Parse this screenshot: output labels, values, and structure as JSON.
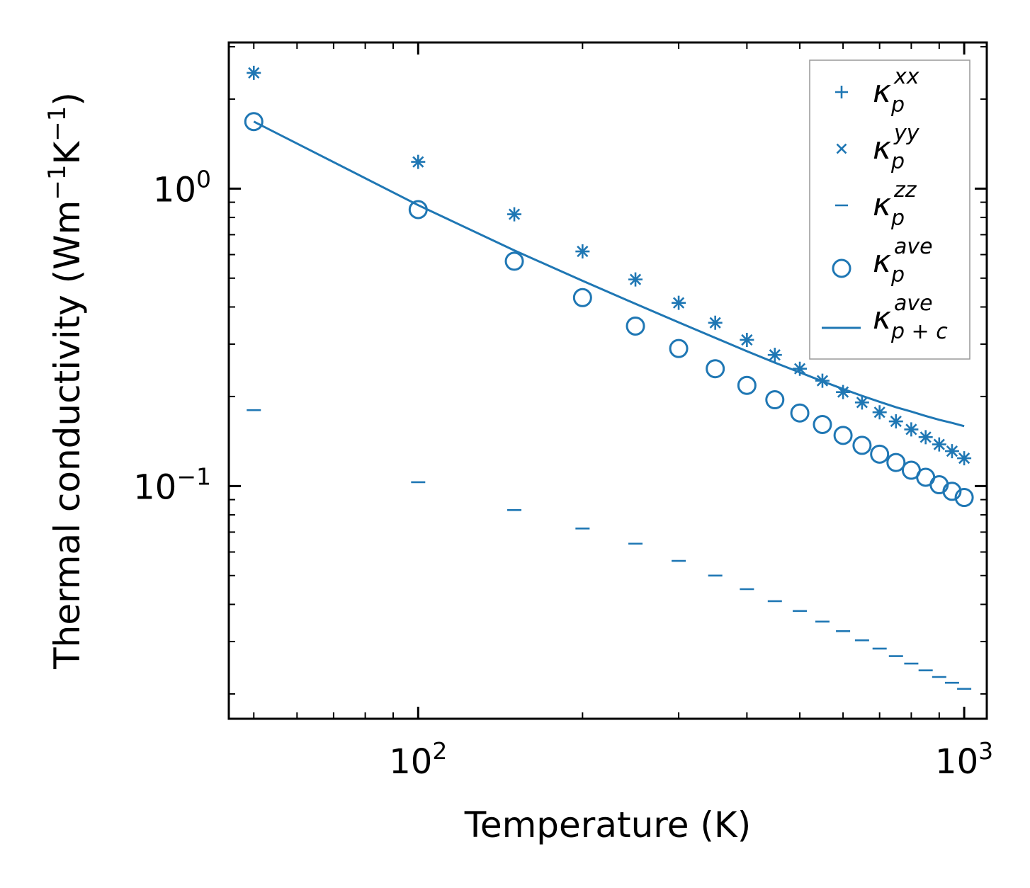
{
  "chart_data": {
    "type": "scatter",
    "xscale": "log",
    "yscale": "log",
    "xlim": [
      45,
      1100
    ],
    "ylim": [
      0.0165,
      3.1
    ],
    "xlabel": "Temperature (K)",
    "ylabel": {
      "text": "Thermal conductivity (Wm",
      "sup1": "−1",
      "mid": "K",
      "sup2": "−1",
      "end": ")"
    },
    "xticks": [
      {
        "base": "10",
        "exp": "2",
        "value": 100
      },
      {
        "base": "10",
        "exp": "3",
        "value": 1000
      }
    ],
    "yticks": [
      {
        "base": "10",
        "exp": "0",
        "value": 1
      },
      {
        "base": "10",
        "exp": "−1",
        "value": 0.1
      }
    ],
    "color": "#1f77b4",
    "x": [
      50,
      100,
      150,
      200,
      250,
      300,
      350,
      400,
      450,
      500,
      550,
      600,
      650,
      700,
      750,
      800,
      850,
      900,
      950,
      1000
    ],
    "series": [
      {
        "name": "kappa_p_xx",
        "marker": "plus",
        "values": [
          2.45,
          1.23,
          0.82,
          0.615,
          0.495,
          0.413,
          0.354,
          0.31,
          0.276,
          0.248,
          0.226,
          0.207,
          0.191,
          0.177,
          0.165,
          0.155,
          0.146,
          0.138,
          0.131,
          0.124
        ]
      },
      {
        "name": "kappa_p_yy",
        "marker": "x",
        "values": [
          2.45,
          1.23,
          0.82,
          0.615,
          0.495,
          0.413,
          0.354,
          0.31,
          0.276,
          0.248,
          0.226,
          0.207,
          0.191,
          0.177,
          0.165,
          0.155,
          0.146,
          0.138,
          0.131,
          0.124
        ]
      },
      {
        "name": "kappa_p_zz",
        "marker": "hline",
        "values": [
          0.18,
          0.103,
          0.083,
          0.072,
          0.064,
          0.056,
          0.05,
          0.045,
          0.041,
          0.038,
          0.035,
          0.0325,
          0.0303,
          0.0284,
          0.0268,
          0.0253,
          0.024,
          0.0228,
          0.0218,
          0.0208
        ]
      },
      {
        "name": "kappa_p_ave",
        "marker": "circle",
        "values": [
          1.68,
          0.85,
          0.57,
          0.43,
          0.345,
          0.29,
          0.248,
          0.218,
          0.195,
          0.176,
          0.161,
          0.148,
          0.137,
          0.128,
          0.12,
          0.113,
          0.107,
          0.101,
          0.096,
          0.0915
        ]
      },
      {
        "name": "kappa_pc_ave",
        "marker": "line",
        "values": [
          1.68,
          0.88,
          0.62,
          0.49,
          0.41,
          0.355,
          0.315,
          0.284,
          0.26,
          0.241,
          0.225,
          0.212,
          0.201,
          0.192,
          0.184,
          0.178,
          0.172,
          0.167,
          0.163,
          0.159
        ]
      }
    ],
    "legend": {
      "position": "top-right",
      "entries": [
        {
          "series": "kappa_p_xx",
          "symbol": "κ",
          "sub": "p",
          "sup": "xx"
        },
        {
          "series": "kappa_p_yy",
          "symbol": "κ",
          "sub": "p",
          "sup": "yy"
        },
        {
          "series": "kappa_p_zz",
          "symbol": "κ",
          "sub": "p",
          "sup": "zz"
        },
        {
          "series": "kappa_p_ave",
          "symbol": "κ",
          "sub": "p",
          "sup": "ave"
        },
        {
          "series": "kappa_pc_ave",
          "symbol": "κ",
          "sub": "p + c",
          "sup": "ave"
        }
      ]
    }
  }
}
